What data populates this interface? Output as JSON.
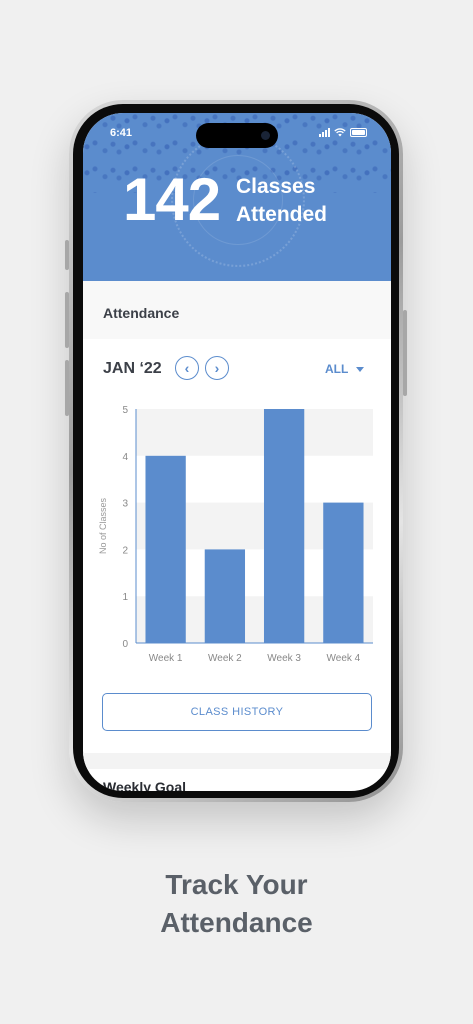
{
  "status_bar": {
    "time": "6:41"
  },
  "hero": {
    "count": "142",
    "label": "Classes Attended"
  },
  "section": {
    "title": "Attendance"
  },
  "period": {
    "month": "JAN ‘22",
    "prev_icon": "chevron-left-icon",
    "next_icon": "chevron-right-icon"
  },
  "filter": {
    "label": "ALL"
  },
  "chart_data": {
    "type": "bar",
    "categories": [
      "Week 1",
      "Week 2",
      "Week 3",
      "Week 4"
    ],
    "values": [
      4,
      2,
      5,
      3
    ],
    "ylabel": "No of Classes",
    "xlabel": "",
    "ylim": [
      0,
      5
    ],
    "yticks": [
      0,
      1,
      2,
      3,
      4,
      5
    ],
    "bar_color": "#5b8ccd",
    "grid": true
  },
  "class_history_button": "CLASS HISTORY",
  "weekly_goal": {
    "title": "Weekly Goal"
  },
  "tagline": {
    "line1": "Track Your",
    "line2": "Attendance"
  },
  "colors": {
    "accent": "#5b8ccd",
    "background": "#f0f0f0",
    "text": "#3c4048"
  }
}
